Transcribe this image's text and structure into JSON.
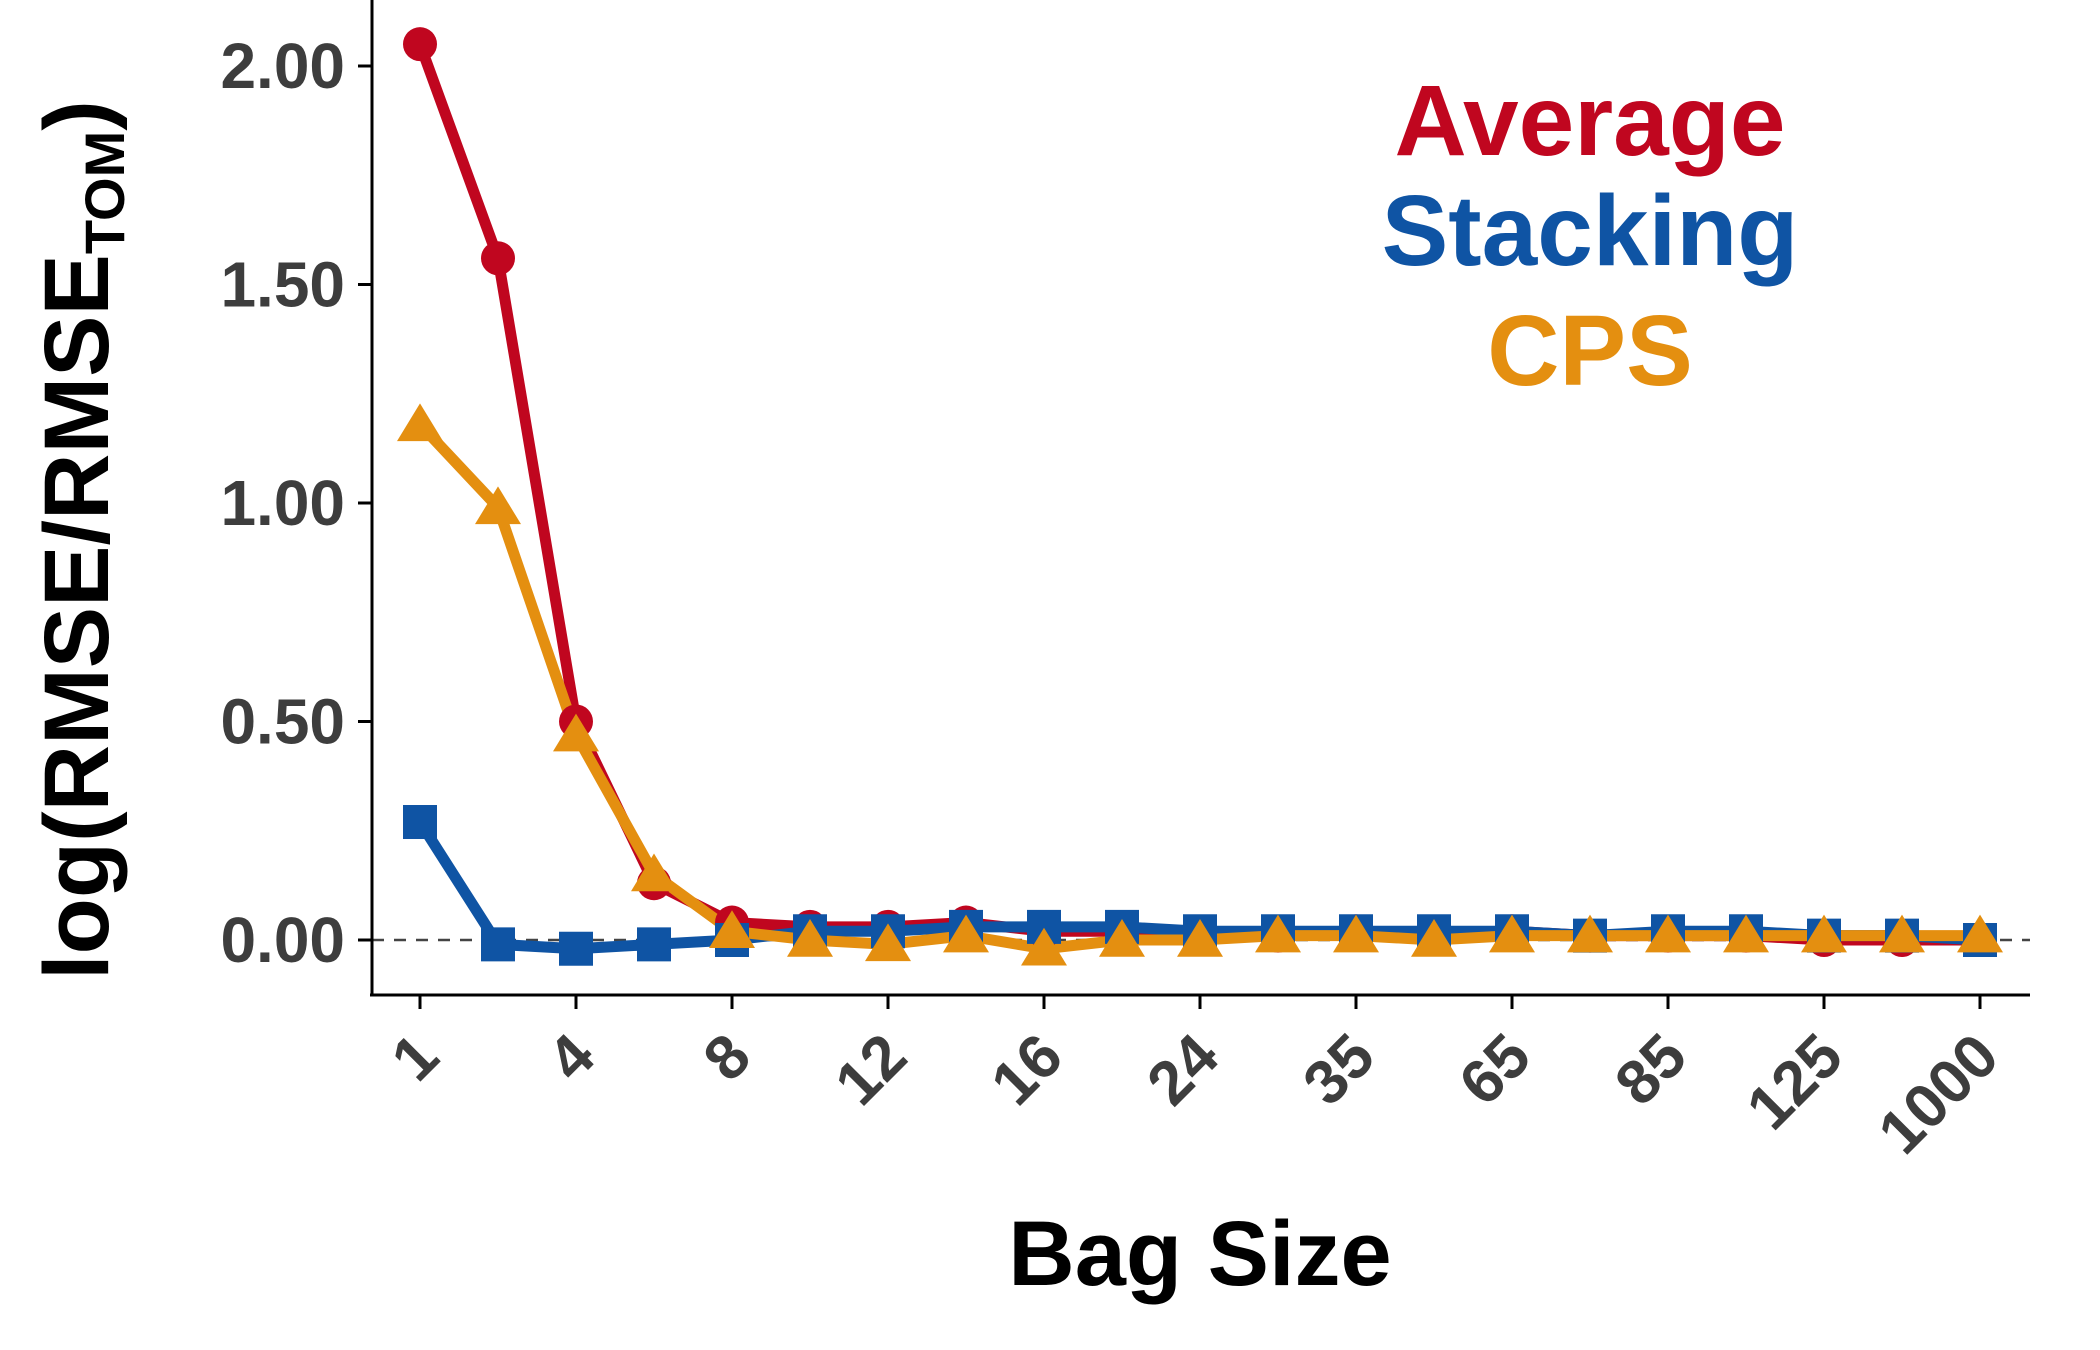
{
  "chart_data": {
    "type": "line",
    "title": "",
    "xlabel": "Bag Size",
    "ylabel": {
      "main": "log(RMSE/RMSE",
      "subscript": "TOM",
      "close": ")"
    },
    "x_ticks_labeled": [
      "1",
      "4",
      "8",
      "12",
      "16",
      "24",
      "35",
      "65",
      "85",
      "125",
      "1000"
    ],
    "x": [
      "1",
      "2",
      "4",
      "6",
      "8",
      "10",
      "12",
      "14",
      "16",
      "18",
      "24",
      "30",
      "35",
      "50",
      "65",
      "75",
      "85",
      "100",
      "125",
      "150",
      "1000"
    ],
    "y_ticks": [
      "0.00",
      "0.50",
      "1.00",
      "1.50",
      "2.00"
    ],
    "ylim": [
      -0.13,
      2.15
    ],
    "reference_line_y": 0,
    "grid": false,
    "legend_position": "top-right",
    "series": [
      {
        "name": "Average",
        "color": "#c0061f",
        "marker": "circle",
        "values": [
          2.05,
          1.56,
          0.5,
          0.13,
          0.04,
          0.03,
          0.03,
          0.04,
          0.02,
          0.02,
          0.01,
          0.01,
          0.02,
          0.01,
          0.02,
          0.01,
          0.01,
          0.01,
          0.0,
          0.0,
          0.0
        ]
      },
      {
        "name": "Stacking",
        "color": "#0f54a4",
        "marker": "square",
        "values": [
          0.27,
          -0.01,
          -0.02,
          -0.01,
          0.0,
          0.02,
          0.02,
          0.03,
          0.03,
          0.03,
          0.02,
          0.02,
          0.02,
          0.02,
          0.02,
          0.01,
          0.02,
          0.02,
          0.01,
          0.01,
          0.0
        ]
      },
      {
        "name": "CPS",
        "color": "#e48f10",
        "marker": "triangle",
        "values": [
          1.18,
          0.99,
          0.47,
          0.15,
          0.02,
          0.0,
          -0.01,
          0.01,
          -0.02,
          0.0,
          0.0,
          0.01,
          0.01,
          0.0,
          0.01,
          0.01,
          0.01,
          0.01,
          0.01,
          0.01,
          0.01
        ]
      }
    ]
  }
}
